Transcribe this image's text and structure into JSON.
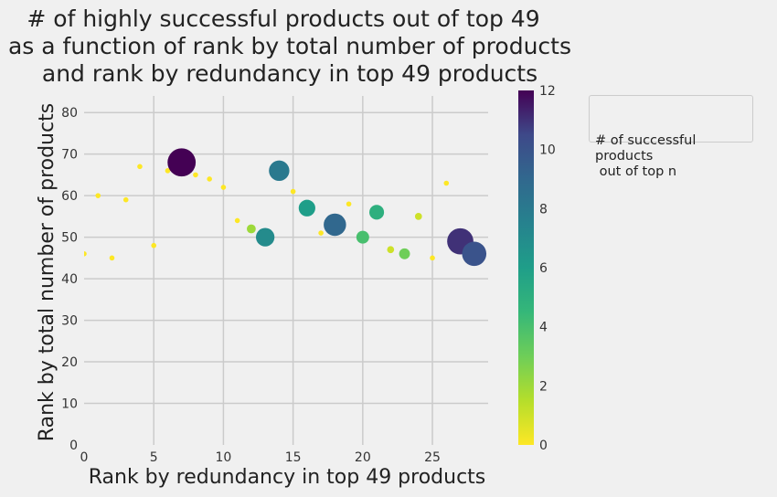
{
  "chart_data": {
    "type": "scatter",
    "title_lines": [
      "# of highly successful products out of top 49",
      "as a function of rank by total number of products",
      "and rank by redundancy in top 49 products"
    ],
    "xlabel": "Rank by redundancy in top 49 products",
    "ylabel": "Rank by total number of products",
    "xlim": [
      0,
      29
    ],
    "ylim": [
      0,
      84
    ],
    "xticks": [
      0,
      5,
      10,
      15,
      20,
      25
    ],
    "yticks": [
      0,
      10,
      20,
      30,
      40,
      50,
      60,
      70,
      80
    ],
    "grid": true,
    "colormap": "viridis_r",
    "colorbar": {
      "min": 0,
      "max": 12,
      "ticks": [
        0,
        2,
        4,
        6,
        8,
        10,
        12
      ]
    },
    "legend": {
      "title": "# of successful products\n out of top n",
      "placement": "outside-right"
    },
    "points": [
      {
        "x": 0,
        "y": 46,
        "value": 0
      },
      {
        "x": 1,
        "y": 60,
        "value": 0
      },
      {
        "x": 2,
        "y": 45,
        "value": 0
      },
      {
        "x": 3,
        "y": 59,
        "value": 0
      },
      {
        "x": 4,
        "y": 67,
        "value": 0
      },
      {
        "x": 5,
        "y": 48,
        "value": 0
      },
      {
        "x": 6,
        "y": 66,
        "value": 0
      },
      {
        "x": 7,
        "y": 68,
        "value": 12
      },
      {
        "x": 8,
        "y": 65,
        "value": 0
      },
      {
        "x": 9,
        "y": 64,
        "value": 0
      },
      {
        "x": 10,
        "y": 62,
        "value": 0
      },
      {
        "x": 11,
        "y": 54,
        "value": 0
      },
      {
        "x": 12,
        "y": 52,
        "value": 2
      },
      {
        "x": 13,
        "y": 50,
        "value": 7
      },
      {
        "x": 14,
        "y": 66,
        "value": 8
      },
      {
        "x": 15,
        "y": 61,
        "value": 0
      },
      {
        "x": 16,
        "y": 57,
        "value": 6
      },
      {
        "x": 17,
        "y": 51,
        "value": 0
      },
      {
        "x": 18,
        "y": 53,
        "value": 9
      },
      {
        "x": 19,
        "y": 58,
        "value": 0
      },
      {
        "x": 20,
        "y": 50,
        "value": 4
      },
      {
        "x": 21,
        "y": 56,
        "value": 5
      },
      {
        "x": 22,
        "y": 47,
        "value": 1
      },
      {
        "x": 23,
        "y": 46,
        "value": 3
      },
      {
        "x": 24,
        "y": 55,
        "value": 1
      },
      {
        "x": 25,
        "y": 45,
        "value": 0
      },
      {
        "x": 26,
        "y": 63,
        "value": 0
      },
      {
        "x": 27,
        "y": 49,
        "value": 11
      },
      {
        "x": 28,
        "y": 46,
        "value": 10
      }
    ]
  }
}
